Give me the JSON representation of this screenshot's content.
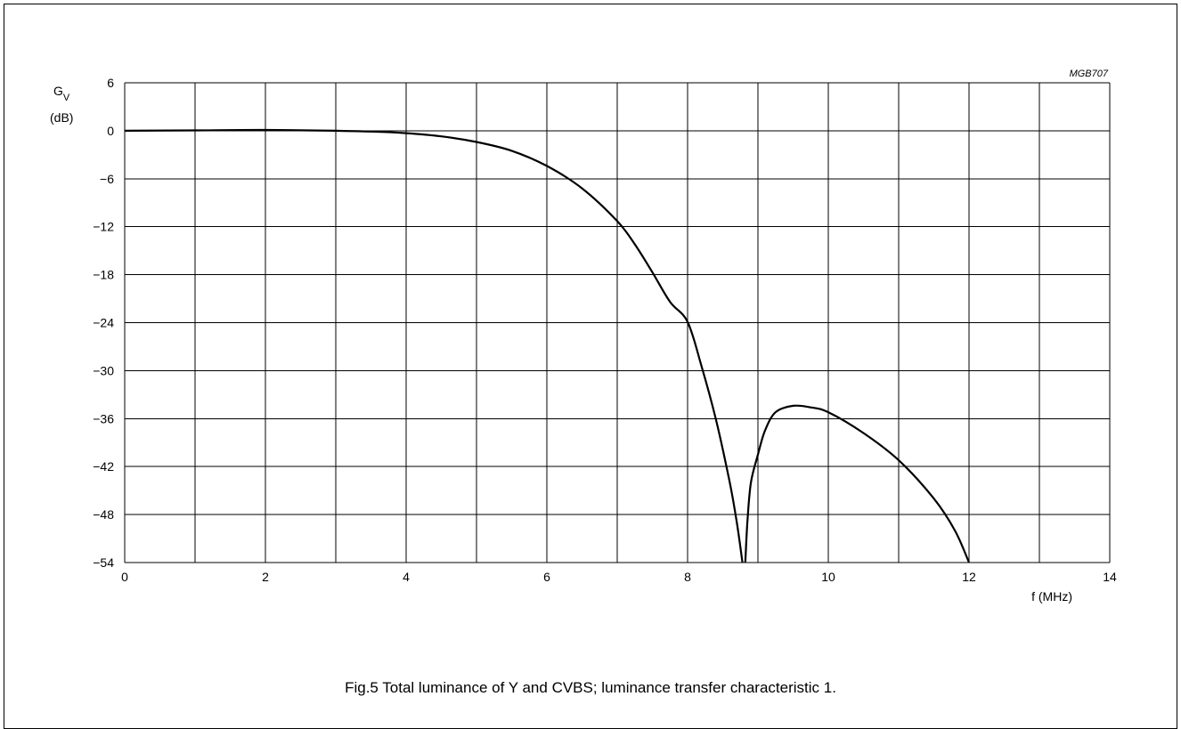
{
  "figure_code": "MGB707",
  "caption": "Fig.5  Total luminance of Y and CVBS; luminance transfer characteristic 1.",
  "chart_data": {
    "type": "line",
    "title": "",
    "ylabel": "G",
    "ylabel_subscript": "V",
    "ylabel_unit": "(dB)",
    "xlabel": "f  (MHz)",
    "xlim": [
      0,
      14
    ],
    "ylim": [
      -54,
      6
    ],
    "x_ticks": [
      "0",
      "2",
      "4",
      "6",
      "8",
      "10",
      "12",
      "14"
    ],
    "y_ticks": [
      "6",
      "0",
      "−6",
      "−12",
      "−18",
      "−24",
      "−30",
      "−36",
      "−42",
      "−48",
      "−54"
    ],
    "grid": true,
    "series": [
      {
        "segments": [
          {
            "x": [
              0,
              1,
              2,
              3,
              3.5,
              4,
              4.5,
              5,
              5.5,
              6,
              6.5,
              7,
              7.25,
              7.5,
              7.75,
              8,
              8.2,
              8.4,
              8.6,
              8.7,
              8.78
            ],
            "y": [
              0,
              0.05,
              0.1,
              0,
              -0.1,
              -0.3,
              -0.7,
              -1.4,
              -2.5,
              -4.4,
              -7.2,
              -11.3,
              -14.2,
              -17.7,
              -21.4,
              -23.9,
              -29.5,
              -36,
              -44,
              -49,
              -54
            ]
          },
          {
            "x": [
              8.82,
              8.85,
              8.9,
              9.0,
              9.1,
              9.25,
              9.5,
              9.75,
              10,
              10.5,
              11,
              11.5,
              11.8,
              12
            ],
            "y": [
              -54,
              -49,
              -44,
              -40.5,
              -37.5,
              -35.2,
              -34.4,
              -34.6,
              -35.2,
              -37.8,
              -41.2,
              -46,
              -50,
              -54
            ]
          }
        ]
      }
    ]
  }
}
